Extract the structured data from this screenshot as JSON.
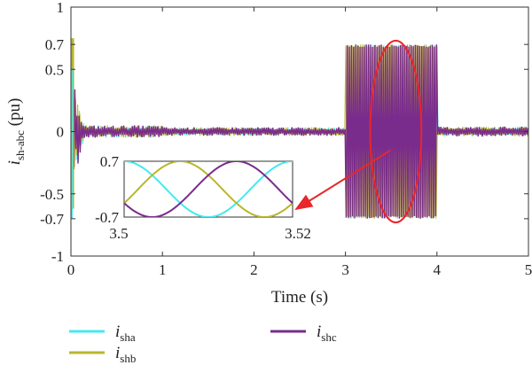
{
  "chart_data": {
    "type": "line",
    "xlabel": "Time (s)",
    "ylabel": {
      "main": "i",
      "sub": "sh-abc",
      "unit": " (pu)"
    },
    "xlim": [
      0,
      5
    ],
    "ylim": [
      -1,
      1
    ],
    "x_ticks": [
      0,
      1,
      2,
      3,
      4,
      5
    ],
    "y_ticks": [
      1,
      0.7,
      0.5,
      0,
      -0.5,
      -0.7,
      -1
    ],
    "grid": false,
    "legend_position": "bottom",
    "series": [
      {
        "key": "a",
        "name": {
          "main": "i",
          "sub": "sha"
        },
        "color": "#46e8f0",
        "phase_deg": 0
      },
      {
        "key": "b",
        "name": {
          "main": "i",
          "sub": "shb"
        },
        "color": "#b9b62e",
        "phase_deg": -120
      },
      {
        "key": "c",
        "name": {
          "main": "i",
          "sub": "shc"
        },
        "color": "#7a2c8c",
        "phase_deg": 120
      }
    ],
    "envelope_segments": [
      {
        "x_start": 0,
        "x_end": 0.15,
        "amplitude": 0.45
      },
      {
        "x_start": 0.15,
        "x_end": 1.0,
        "amplitude": 0.05
      },
      {
        "x_start": 1.0,
        "x_end": 3.0,
        "amplitude": 0.035
      },
      {
        "x_start": 3.0,
        "x_end": 4.0,
        "amplitude": 0.7
      },
      {
        "x_start": 4.0,
        "x_end": 5.0,
        "amplitude": 0.04
      }
    ],
    "highlight": {
      "shape": "ellipse",
      "color": "#e8262b",
      "x_center": 3.55,
      "y_center": 0,
      "x_radius": 0.28,
      "y_radius": 0.73
    },
    "inset": {
      "xlim": [
        3.5,
        3.52
      ],
      "ylim": [
        -0.7,
        0.7
      ],
      "x_ticks": [
        3.5,
        3.52
      ],
      "y_ticks": [
        0.7,
        -0.7
      ],
      "frequency_hz": 50,
      "amplitude": 0.7
    }
  }
}
